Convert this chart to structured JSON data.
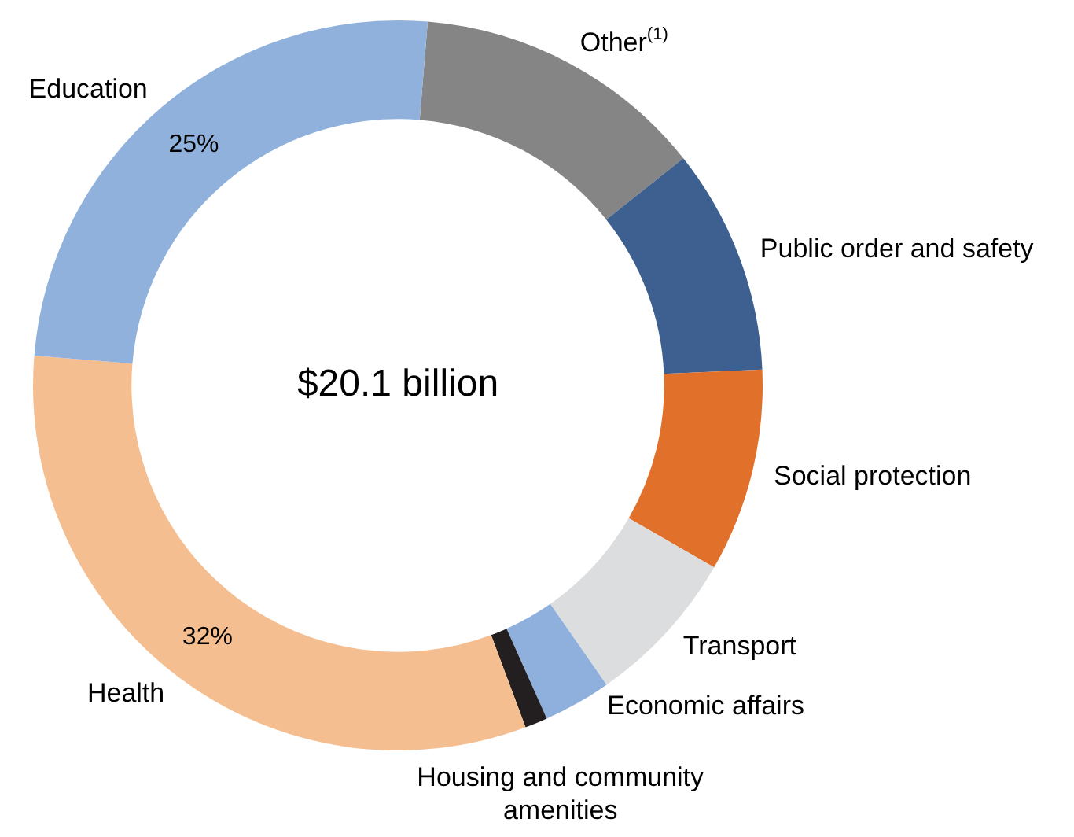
{
  "chart_data": {
    "type": "donut",
    "categories": [
      "Other$^{(1)}$",
      "Public order and safety",
      "Social protection",
      "Transport",
      "Economic affairs",
      "Housing and community amenities",
      "Health",
      "Education"
    ],
    "values": [
      13,
      10,
      9,
      7,
      3,
      1,
      32,
      25
    ],
    "colors": [
      "#858585",
      "#3d6090",
      "#e0702a",
      "#dcdddf",
      "#8fb0dc",
      "#231f20",
      "#f4be90",
      "#8fb1dc"
    ],
    "value_labels": [
      null,
      null,
      null,
      null,
      null,
      null,
      "32%",
      "25%"
    ],
    "annotations": [
      "$20.1 billion"
    ],
    "legend": false
  }
}
